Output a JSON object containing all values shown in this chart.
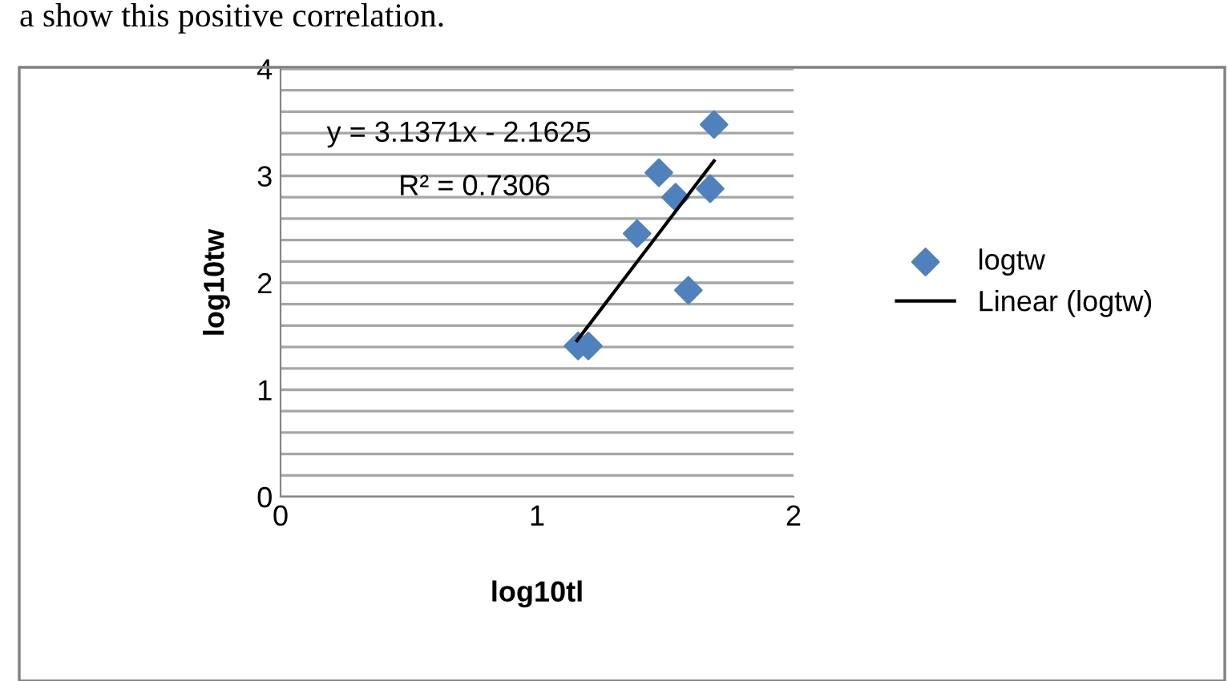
{
  "chart_data": {
    "type": "scatter",
    "xlabel": "log10tl",
    "ylabel": "log10tw",
    "annotations": [
      "a show this positive correlation.",
      "y = 3.1371x - 2.1625",
      "R² = 0.7306"
    ],
    "series": [
      {
        "name": "logtw",
        "color": "#4f81bd",
        "marker": "diamond",
        "x": [
          1.16,
          1.2,
          1.39,
          1.475,
          1.54,
          1.59,
          1.675,
          1.69
        ],
        "values": [
          1.41,
          1.41,
          2.46,
          3.03,
          2.8,
          1.93,
          2.88,
          3.48
        ]
      },
      {
        "name": "Linear (logtw)",
        "type": "line",
        "color": "#000000",
        "marker": "none",
        "x": [
          1.156,
          1.69
        ],
        "values": [
          1.46,
          3.14
        ]
      }
    ],
    "xlim": [
      0,
      2
    ],
    "xticks": [
      0,
      1,
      2
    ],
    "ylim": [
      0,
      4
    ],
    "yticks": [
      0,
      {
        "value": 0.2,
        "label": null
      },
      {
        "value": 0.4,
        "label": null
      },
      {
        "value": 0.6,
        "label": null
      },
      {
        "value": 0.8,
        "label": null
      },
      1,
      {
        "value": 1.2,
        "label": null
      },
      {
        "value": 1.4,
        "label": null
      },
      {
        "value": 1.6,
        "label": null
      },
      {
        "value": 1.8,
        "label": null
      },
      2,
      {
        "value": 2.2,
        "label": null
      },
      {
        "value": 2.4,
        "label": null
      },
      {
        "value": 2.6,
        "label": null
      },
      {
        "value": 2.8,
        "label": null
      },
      3,
      {
        "value": 3.2,
        "label": null
      },
      {
        "value": 3.4,
        "label": null
      },
      {
        "value": 3.6,
        "label": null
      },
      {
        "value": 3.8,
        "label": null
      },
      4
    ],
    "grid": "y",
    "legend": "right"
  }
}
